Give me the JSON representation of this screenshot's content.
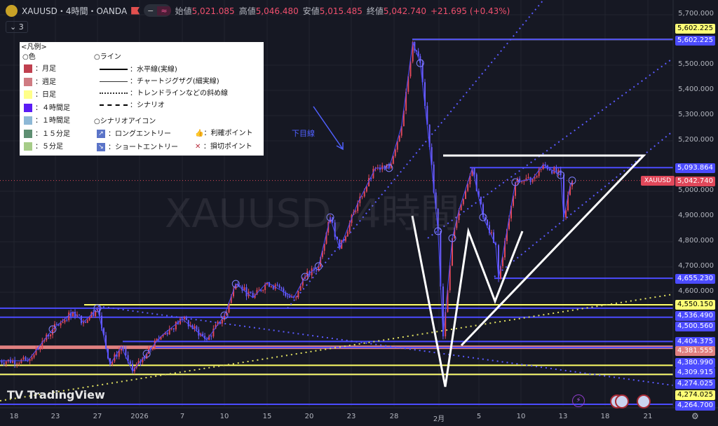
{
  "header": {
    "symbol": "XAUUSD・4時間・OANDA",
    "open_label": "始値",
    "open": "5,021.085",
    "high_label": "高値",
    "high": "5,046.480",
    "low_label": "安値",
    "low": "5,015.485",
    "close_label": "終値",
    "close": "5,042.740",
    "change": "+21.695 (+0.43%)",
    "indicator_toggle": "3",
    "pill_a": "−",
    "pill_b": "≈"
  },
  "watermark": "XAUUSD, 4時間",
  "brand": "TradingView",
  "annotation": "下目線",
  "legend": {
    "title": "<凡例>",
    "colors_title": "○色",
    "colors": [
      {
        "label": "：月足",
        "color": "#c0404f"
      },
      {
        "label": "：週足",
        "color": "#cf7b82"
      },
      {
        "label": "：日足",
        "color": "#ffff88"
      },
      {
        "label": "：４時間足",
        "color": "#5a1cf5"
      },
      {
        "label": "：１時間足",
        "color": "#8db8d6"
      },
      {
        "label": "：１５分足",
        "color": "#5e8f72"
      },
      {
        "label": "：５分足",
        "color": "#a6cc88"
      }
    ],
    "lines_title": "○ライン",
    "lines": [
      "：水平線(実線)",
      "：チャートジグザグ(細実線)",
      "：トレンドラインなどの斜め線",
      "：シナリオ"
    ],
    "icons_title": "○シナリオアイコン",
    "icons": {
      "long": "：ロングエントリー",
      "short": "：ショートエントリー",
      "take_profit": "：利確ポイント",
      "stop_loss": "：損切ポイント"
    }
  },
  "chart_data": {
    "type": "candlestick",
    "symbol": "XAUUSD",
    "timeframe": "4時間",
    "ylim": [
      4250,
      5720
    ],
    "y_ticks": [
      "5,700.000",
      "5,500.000",
      "5,400.000",
      "5,300.000",
      "5,200.000",
      "5,000.000",
      "4,900.000",
      "4,800.000",
      "4,700.000",
      "4,600.000"
    ],
    "x_ticks": [
      {
        "label": "18",
        "date": "2025-12-18"
      },
      {
        "label": "23",
        "date": "2025-12-23"
      },
      {
        "label": "27",
        "date": "2025-12-27"
      },
      {
        "label": "2026",
        "date": "2026-01-01"
      },
      {
        "label": "7",
        "date": "2026-01-07"
      },
      {
        "label": "10",
        "date": "2026-01-10"
      },
      {
        "label": "15",
        "date": "2026-01-15"
      },
      {
        "label": "20",
        "date": "2026-01-20"
      },
      {
        "label": "23",
        "date": "2026-01-23"
      },
      {
        "label": "28",
        "date": "2026-01-28"
      },
      {
        "label": "2月",
        "date": "2026-02-01"
      },
      {
        "label": "5",
        "date": "2026-02-05"
      },
      {
        "label": "10",
        "date": "2026-02-10"
      },
      {
        "label": "13",
        "date": "2026-02-13"
      },
      {
        "label": "18",
        "date": "2026-02-18"
      },
      {
        "label": "21",
        "date": "2026-02-21"
      }
    ],
    "price_path": [
      [
        "2025-12-16T00:00",
        4328
      ],
      [
        "2025-12-19T16:00",
        4328
      ],
      [
        "2025-12-22T16:00",
        4453
      ],
      [
        "2025-12-24T16:00",
        4522
      ],
      [
        "2025-12-25T16:00",
        4481
      ],
      [
        "2025-12-27T00:00",
        4536
      ],
      [
        "2025-12-28T12:00",
        4314
      ],
      [
        "2025-12-29T20:00",
        4383
      ],
      [
        "2025-12-31T04:00",
        4286
      ],
      [
        "2026-01-02T00:00",
        4356
      ],
      [
        "2026-01-04T00:00",
        4425
      ],
      [
        "2026-01-07T00:00",
        4494
      ],
      [
        "2026-01-08T18:00",
        4411
      ],
      [
        "2026-01-10T00:00",
        4508
      ],
      [
        "2026-01-11T08:00",
        4633
      ],
      [
        "2026-01-13T08:00",
        4578
      ],
      [
        "2026-01-15T00:00",
        4639
      ],
      [
        "2026-01-18T04:00",
        4578
      ],
      [
        "2026-01-19T12:00",
        4661
      ],
      [
        "2026-01-20T16:00",
        4703
      ],
      [
        "2026-01-21T12:00",
        4897
      ],
      [
        "2026-01-22T04:00",
        4772
      ],
      [
        "2026-01-23T18:00",
        4953
      ],
      [
        "2026-01-25T20:00",
        5092
      ],
      [
        "2026-01-27T10:00",
        5092
      ],
      [
        "2026-01-28T16:00",
        5258
      ],
      [
        "2026-01-29T16:00",
        5592
      ],
      [
        "2026-01-30T08:00",
        5508
      ],
      [
        "2026-01-31T04:00",
        5175
      ],
      [
        "2026-01-31T22:00",
        4842
      ],
      [
        "2026-02-01T10:00",
        4425
      ],
      [
        "2026-02-02T08:00",
        4814
      ],
      [
        "2026-02-03T00:00",
        4925
      ],
      [
        "2026-02-04T08:00",
        5092
      ],
      [
        "2026-02-05T12:00",
        4897
      ],
      [
        "2026-02-07T00:00",
        4786
      ],
      [
        "2026-02-07T08:00",
        4653
      ],
      [
        "2026-02-09T08:00",
        5036
      ],
      [
        "2026-02-10T20:00",
        5050
      ],
      [
        "2026-02-11T14:00",
        5106
      ],
      [
        "2026-02-12T20:00",
        5064
      ],
      [
        "2026-02-13T02:00",
        4897
      ],
      [
        "2026-02-13T20:00",
        5020
      ],
      [
        "2026-02-14T02:00",
        5042.74
      ]
    ],
    "horizontal_lines": [
      {
        "price": 5602.225,
        "label": "5,602.225",
        "color": "#ffff66",
        "tag": "#ffff77",
        "text": "#000"
      },
      {
        "price": 5602.225,
        "label": "5,602.225",
        "color": "#4b4bff",
        "tag": "#4b4bff",
        "text": "#fff"
      },
      {
        "price": 5093.864,
        "label": "5,093.864",
        "color": "#4b4bff",
        "tag": "#4b4bff",
        "text": "#fff"
      },
      {
        "price": 5042.74,
        "label": "5,042.740",
        "color": "#e0485a",
        "tag": "#e0485a",
        "text": "#fff"
      },
      {
        "price": 4655.23,
        "label": "4,655.230",
        "color": "#4b4bff",
        "tag": "#4b4bff",
        "text": "#fff"
      },
      {
        "price": 4550.15,
        "label": "4,550.150",
        "color": "#ffff66",
        "tag": "#ffff77",
        "text": "#000"
      },
      {
        "price": 4536.49,
        "label": "4,536.490",
        "color": "#4b4bff",
        "tag": "#4b4bff",
        "text": "#fff"
      },
      {
        "price": 4500.56,
        "label": "4,500.560",
        "color": "#4b4bff",
        "tag": "#4b4bff",
        "text": "#fff"
      },
      {
        "price": 4404.375,
        "label": "4,404.375",
        "color": "#4b4bff",
        "tag": "#4b4bff",
        "text": "#fff"
      },
      {
        "price": 4381.555,
        "label": "4,381.555",
        "color": "#e08080",
        "tag": "#e08080",
        "text": "#fff"
      },
      {
        "price": 4380.99,
        "label": "4,380.990",
        "color": "#4b4bff",
        "tag": "#4b4bff",
        "text": "#fff"
      },
      {
        "price": 4309.915,
        "label": "4,309.915",
        "color": "#ffff66",
        "tag": "#4b4bff",
        "text": "#fff"
      },
      {
        "price": 4274.025,
        "label": "4,274.025",
        "color": "#4b4bff",
        "tag": "#4b4bff",
        "text": "#fff"
      },
      {
        "price": 4274.025,
        "label": "4,274.025",
        "color": "#ffff66",
        "tag": "#ffff77",
        "text": "#000"
      },
      {
        "price": 4264.7,
        "label": "4,264.700",
        "color": "#4b4bff",
        "tag": "#4b4bff",
        "text": "#fff"
      }
    ],
    "current_price_tag": "XAUUSD",
    "colors": {
      "up": "#e0485a",
      "down": "#6a5cff",
      "zigzag": "#4b4bff",
      "scenario": "#ffffff",
      "background": "#161823"
    }
  }
}
